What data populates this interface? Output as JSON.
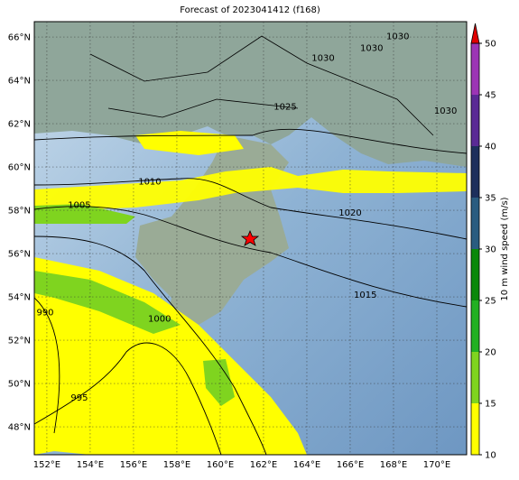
{
  "title": "Forecast of 2023041412 (f168)",
  "map": {
    "lonlim": [
      151.42,
      171.375
    ],
    "latlim": [
      46.71,
      66.71
    ],
    "lon_ticks": [
      {
        "value": 152,
        "label": "152°E"
      },
      {
        "value": 154,
        "label": "154°E"
      },
      {
        "value": 156,
        "label": "156°E"
      },
      {
        "value": 158,
        "label": "158°E"
      },
      {
        "value": 160,
        "label": "160°E"
      },
      {
        "value": 162,
        "label": "162°E"
      },
      {
        "value": 164,
        "label": "164°E"
      },
      {
        "value": 166,
        "label": "166°E"
      },
      {
        "value": 168,
        "label": "168°E"
      },
      {
        "value": 170,
        "label": "170°E"
      }
    ],
    "lat_ticks": [
      {
        "value": 48,
        "label": "48°N"
      },
      {
        "value": 50,
        "label": "50°N"
      },
      {
        "value": 52,
        "label": "52°N"
      },
      {
        "value": 54,
        "label": "54°N"
      },
      {
        "value": 56,
        "label": "56°N"
      },
      {
        "value": 58,
        "label": "58°N"
      },
      {
        "value": 60,
        "label": "60°N"
      },
      {
        "value": 62,
        "label": "62°N"
      },
      {
        "value": 64,
        "label": "64°N"
      },
      {
        "value": 66,
        "label": "66°N"
      }
    ],
    "grid": true
  },
  "contour_labels": [
    {
      "value": 1030,
      "lon": 164.75,
      "lat": 65.04
    },
    {
      "value": 1030,
      "lon": 166.99,
      "lat": 65.5
    },
    {
      "value": 1030,
      "lon": 168.2,
      "lat": 66.04
    },
    {
      "value": 1030,
      "lon": 170.4,
      "lat": 62.6
    },
    {
      "value": 1025,
      "lon": 163.0,
      "lat": 62.8
    },
    {
      "value": 1010,
      "lon": 156.75,
      "lat": 59.33
    },
    {
      "value": 1005,
      "lon": 153.5,
      "lat": 58.25
    },
    {
      "value": 1020,
      "lon": 166.0,
      "lat": 57.9
    },
    {
      "value": 1015,
      "lon": 166.7,
      "lat": 54.1
    },
    {
      "value": 1000,
      "lon": 157.2,
      "lat": 53.0
    },
    {
      "value": 990,
      "lon": 151.92,
      "lat": 53.3
    },
    {
      "value": 995,
      "lon": 153.5,
      "lat": 49.35
    }
  ],
  "colorbar": {
    "label": "10 m wind speed (m/s)",
    "lim": [
      10,
      50
    ],
    "ticks": [
      10,
      15,
      20,
      25,
      30,
      35,
      40,
      45,
      50
    ],
    "colors": [
      "#ffff00",
      "#7fd41f",
      "#22b022",
      "#0a880a",
      "#2a5c80",
      "#1d2f5c",
      "#5a2a95",
      "#9c35b5"
    ],
    "extend_color": "#e00000"
  }
}
